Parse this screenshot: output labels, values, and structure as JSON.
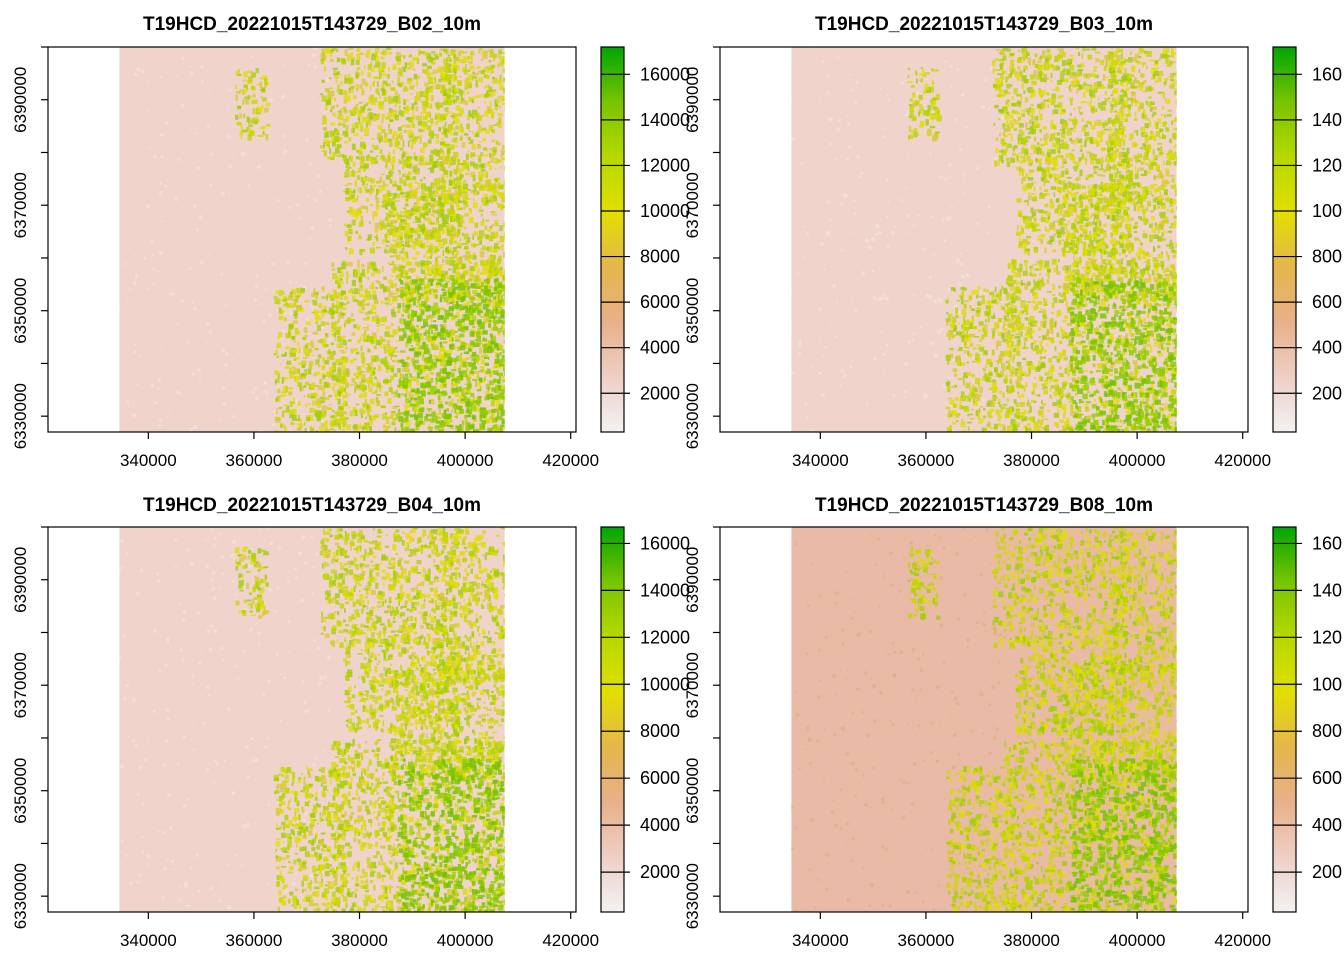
{
  "figure": {
    "background": "#ffffff",
    "layout": "2x2 grid of raster maps with color legends"
  },
  "chart_data": [
    {
      "type": "heatmap",
      "title": "T19HCD_20221015T143729_B02_10m",
      "xlabel": "",
      "ylabel": "",
      "xlim": [
        321000,
        421000
      ],
      "ylim": [
        6327000,
        6400000
      ],
      "x_ticks": [
        340000,
        360000,
        380000,
        400000,
        420000
      ],
      "y_ticks": [
        6330000,
        6350000,
        6370000,
        6390000
      ],
      "raster_extent": {
        "x": [
          334500,
          407500
        ],
        "y": [
          6327000,
          6400000
        ]
      },
      "legend": {
        "position": "right",
        "range": [
          300,
          17200
        ],
        "ticks": [
          2000,
          4000,
          6000,
          8000,
          10000,
          12000,
          14000,
          16000
        ],
        "colors": [
          "#f2f2f2",
          "#eecfc6",
          "#e8b08a",
          "#e4b74a",
          "#e2df00",
          "#b6d800",
          "#78c400",
          "#00a600"
        ]
      }
    },
    {
      "type": "heatmap",
      "title": "T19HCD_20221015T143729_B03_10m",
      "xlabel": "",
      "ylabel": "",
      "xlim": [
        321000,
        421000
      ],
      "ylim": [
        6327000,
        6400000
      ],
      "x_ticks": [
        340000,
        360000,
        380000,
        400000,
        420000
      ],
      "y_ticks": [
        6330000,
        6350000,
        6370000,
        6390000
      ],
      "raster_extent": {
        "x": [
          334500,
          407500
        ],
        "y": [
          6327000,
          6400000
        ]
      },
      "legend": {
        "position": "right",
        "range": [
          300,
          17200
        ],
        "ticks": [
          2000,
          4000,
          6000,
          8000,
          10000,
          12000,
          14000,
          16000
        ],
        "tick_labels_visible": [
          "200",
          "400",
          "600",
          "800",
          "100",
          "120",
          "140",
          "160"
        ],
        "colors": [
          "#f2f2f2",
          "#eecfc6",
          "#e8b08a",
          "#e4b74a",
          "#e2df00",
          "#b6d800",
          "#78c400",
          "#00a600"
        ]
      }
    },
    {
      "type": "heatmap",
      "title": "T19HCD_20221015T143729_B04_10m",
      "xlabel": "",
      "ylabel": "",
      "xlim": [
        321000,
        421000
      ],
      "ylim": [
        6327000,
        6400000
      ],
      "x_ticks": [
        340000,
        360000,
        380000,
        400000,
        420000
      ],
      "y_ticks": [
        6330000,
        6350000,
        6370000,
        6390000
      ],
      "raster_extent": {
        "x": [
          334500,
          407500
        ],
        "y": [
          6327000,
          6400000
        ]
      },
      "legend": {
        "position": "right",
        "range": [
          300,
          16700
        ],
        "ticks": [
          2000,
          4000,
          6000,
          8000,
          10000,
          12000,
          14000,
          16000
        ],
        "colors": [
          "#f2f2f2",
          "#eecfc6",
          "#e8b08a",
          "#e4b74a",
          "#e2df00",
          "#b6d800",
          "#78c400",
          "#00a600"
        ]
      }
    },
    {
      "type": "heatmap",
      "title": "T19HCD_20221015T143729_B08_10m",
      "xlabel": "",
      "ylabel": "",
      "xlim": [
        321000,
        421000
      ],
      "ylim": [
        6327000,
        6400000
      ],
      "x_ticks": [
        340000,
        360000,
        380000,
        400000,
        420000
      ],
      "y_ticks": [
        6330000,
        6350000,
        6370000,
        6390000
      ],
      "raster_extent": {
        "x": [
          334500,
          407500
        ],
        "y": [
          6327000,
          6400000
        ]
      },
      "legend": {
        "position": "right",
        "range": [
          300,
          16700
        ],
        "ticks": [
          2000,
          4000,
          6000,
          8000,
          10000,
          12000,
          14000,
          16000
        ],
        "tick_labels_visible": [
          "200",
          "400",
          "600",
          "800",
          "100",
          "120",
          "140",
          "160"
        ],
        "colors": [
          "#f2f2f2",
          "#eecfc6",
          "#e8b08a",
          "#e4b74a",
          "#e2df00",
          "#b6d800",
          "#78c400",
          "#00a600"
        ]
      }
    }
  ]
}
